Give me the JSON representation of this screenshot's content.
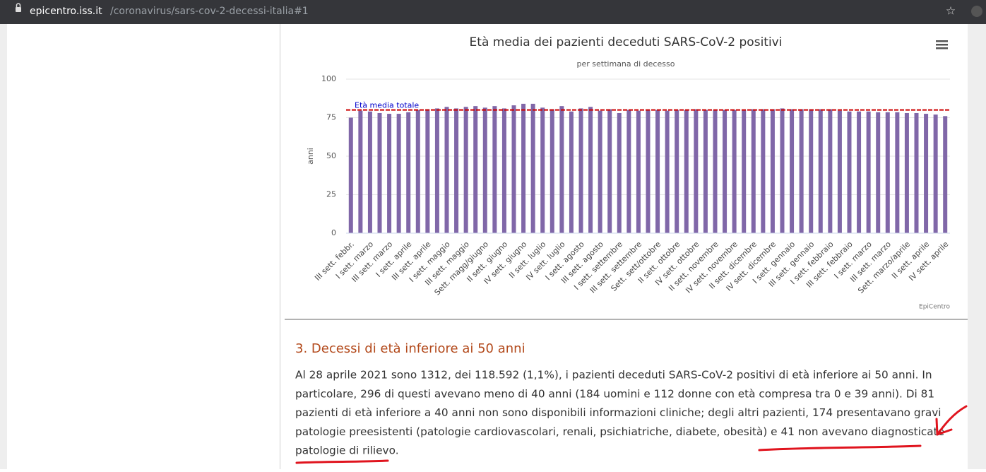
{
  "browser": {
    "domain": "epicentro.iss.it",
    "path": "/coronavirus/sars-cov-2-decessi-italia#1"
  },
  "chart_data": {
    "type": "bar",
    "title": "Età media dei pazienti deceduti SARS-CoV-2 positivi",
    "subtitle": "per settimana di decesso",
    "y_label": "anni",
    "credits": "EpiCentro",
    "categories": [
      "III sett. febbr.",
      null,
      "I sett. marzo",
      null,
      "III sett. marzo",
      null,
      "I sett. aprile",
      null,
      "III sett. aprile",
      null,
      "I sett. maggio",
      null,
      "III sett. maggio",
      null,
      "Sett. magg/giugno",
      null,
      "II sett. giugno",
      null,
      "IV sett. giugno",
      null,
      "II sett. luglio",
      null,
      "IV sett. luglio",
      null,
      "I sett. agosto",
      null,
      "III sett. agosto",
      null,
      "I sett. settembre",
      null,
      "III sett. settembre",
      null,
      "Sett. sett/ottobre",
      null,
      "II sett. ottobre",
      null,
      "IV sett. ottobre",
      null,
      "II sett. novembre",
      null,
      "IV sett. novembre",
      null,
      "II sett. dicembre",
      null,
      "IV sett. dicembre",
      null,
      "I sett. gennaio",
      null,
      "III sett. gennaio",
      null,
      "I sett. febbraio",
      null,
      "III sett. febbraio",
      null,
      "I sett. marzo",
      null,
      "III sett. marzo",
      null,
      "Sett. marzo/aprile",
      null,
      "II sett. aprile",
      null,
      "IV sett. aprile"
    ],
    "values": [
      75,
      79.5,
      79,
      78,
      77.5,
      77.5,
      78.5,
      80,
      80.5,
      81,
      82,
      81,
      82,
      82.5,
      81.5,
      82.5,
      81,
      83,
      84,
      84,
      81.5,
      80.5,
      82.5,
      79,
      81,
      82,
      79.5,
      80.5,
      78,
      80,
      79.5,
      80,
      80,
      79.5,
      80,
      80,
      80.5,
      80,
      80,
      80,
      80,
      80,
      80.5,
      80.5,
      80.5,
      81,
      80.5,
      80.5,
      80.5,
      80.5,
      80.5,
      79.5,
      79,
      79,
      79,
      78.5,
      78.5,
      78.5,
      78,
      78,
      77.5,
      77,
      76
    ],
    "color": "#8067a8",
    "ylim": [
      0,
      100
    ],
    "yticks": [
      0,
      25,
      50,
      75,
      100
    ],
    "grid": true,
    "reference_line": {
      "value": 80,
      "label": "Età media totale",
      "color": "#cc0000"
    }
  },
  "section": {
    "heading": "3. Decessi di età inferiore ai 50 anni",
    "lines": [
      "Al 28 aprile 2021 sono 1312, dei 118.592 (1,1%), i pazienti deceduti SARS-CoV-2 positivi di età inferiore ai 50 anni. In",
      "particolare, 296 di questi avevano meno di 40 anni (184 uomini e 112 donne con età compresa tra 0 e 39 anni). Di 81",
      "pazienti di età inferiore a 40 anni non sono disponibili informazioni cliniche; degli altri pazienti, 174 presentavano gravi",
      "patologie preesistenti (patologie cardiovascolari, renali, psichiatriche, diabete, obesità) e 41 non avevano diagnosticate",
      "patologie di rilievo."
    ]
  }
}
